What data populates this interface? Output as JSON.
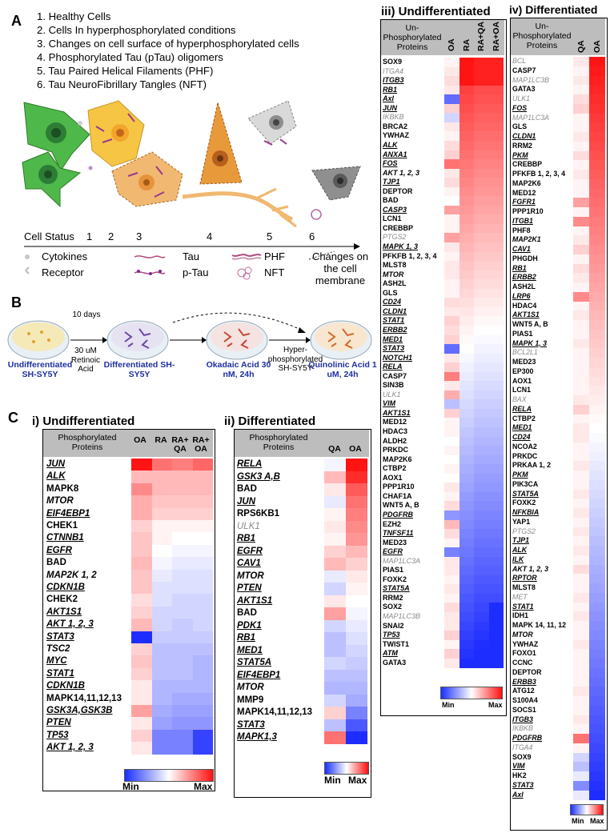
{
  "panelA": {
    "letter": "A",
    "list": [
      "1.   Healthy Cells",
      "2.   Cells In hyperphosphorylated conditions",
      "3.   Changes on cell surface of  hyperphosphorylated cells",
      "4.   Phosphorylated Tau (pTau) oligomers",
      "5.   Tau Paired Helical Filaments (PHF)",
      "6.   Tau NeuroFibrillary Tangles (NFT)"
    ],
    "status_label": "Cell Status",
    "status_numbers": [
      "1",
      "2",
      "3",
      "4",
      "5",
      "6"
    ],
    "legend": {
      "cytokines": "Cytokines",
      "receptor": "Receptor",
      "tau": "Tau",
      "ptau": "p-Tau",
      "phf": "PHF",
      "nft": "NFT",
      "membrane": "Changes on the cell membrane"
    }
  },
  "panelB": {
    "letter": "B",
    "undiff": "Undifferentiated SH-SY5Y",
    "diff": "Differentiated SH-SY5Y",
    "okadaic": "Okadaic Acid 30 nM, 24h",
    "quinolinic": "Quinolinic Acid 1 uM, 24h",
    "step1": "10 days",
    "step2": "30 uM Retinoic Acid",
    "hyper": "Hyper-phosphorylated SH-SY5Y"
  },
  "panelC": {
    "letter": "C",
    "i": {
      "title": "i)  Undifferentiated",
      "header": "Phosphorylated Proteins",
      "cols": [
        "OA",
        "RA",
        "RA+ QA",
        "RA+ OA"
      ],
      "genes": [
        {
          "n": "JUN",
          "s": "biu"
        },
        {
          "n": "ALK",
          "s": "biu"
        },
        {
          "n": "MAPK8",
          "s": "b"
        },
        {
          "n": "MTOR",
          "s": "bi"
        },
        {
          "n": "EIF4EBP1",
          "s": "biu"
        },
        {
          "n": "CHEK1",
          "s": "b"
        },
        {
          "n": "CTNNB1",
          "s": "biu"
        },
        {
          "n": "EGFR",
          "s": "biu"
        },
        {
          "n": "BAD",
          "s": "b"
        },
        {
          "n": "MAP2K 1, 2",
          "s": "bi"
        },
        {
          "n": "CDKN1B",
          "s": "biu"
        },
        {
          "n": "CHEK2",
          "s": "b"
        },
        {
          "n": "AKT1S1",
          "s": "biu"
        },
        {
          "n": "AKT 1, 2, 3",
          "s": "biu"
        },
        {
          "n": "STAT3",
          "s": "biu"
        },
        {
          "n": "TSC2",
          "s": "bi"
        },
        {
          "n": "MYC",
          "s": "biu"
        },
        {
          "n": "STAT1",
          "s": "biu"
        },
        {
          "n": "CDKN1B",
          "s": "biu"
        },
        {
          "n": "MAPK14,11,12,13",
          "s": "b"
        },
        {
          "n": "GSK3A,GSK3B",
          "s": "biu"
        },
        {
          "n": "PTEN",
          "s": "biu"
        },
        {
          "n": "TP53",
          "s": "biu"
        },
        {
          "n": "AKT 1, 2, 3",
          "s": "biu"
        }
      ],
      "values": [
        [
          1.0,
          0.6,
          0.55,
          0.65
        ],
        [
          0.3,
          0.3,
          0.3,
          0.3
        ],
        [
          0.5,
          0.3,
          0.3,
          0.3
        ],
        [
          0.35,
          0.25,
          0.25,
          0.25
        ],
        [
          0.35,
          0.2,
          0.2,
          0.2
        ],
        [
          0.2,
          0.05,
          0.05,
          0.05
        ],
        [
          0.25,
          0.05,
          0.0,
          0.0
        ],
        [
          0.25,
          0.0,
          -0.05,
          -0.05
        ],
        [
          0.3,
          -0.05,
          -0.1,
          -0.1
        ],
        [
          0.25,
          -0.1,
          -0.15,
          -0.15
        ],
        [
          0.25,
          -0.15,
          -0.15,
          -0.15
        ],
        [
          0.15,
          -0.15,
          -0.2,
          -0.2
        ],
        [
          0.2,
          -0.2,
          -0.2,
          -0.2
        ],
        [
          0.3,
          -0.2,
          -0.25,
          -0.2
        ],
        [
          -1.0,
          -0.25,
          -0.25,
          -0.25
        ],
        [
          0.2,
          -0.3,
          -0.3,
          -0.3
        ],
        [
          0.25,
          -0.3,
          -0.3,
          -0.35
        ],
        [
          0.2,
          -0.3,
          -0.3,
          -0.35
        ],
        [
          0.1,
          -0.35,
          -0.35,
          -0.35
        ],
        [
          0.1,
          -0.35,
          -0.4,
          -0.4
        ],
        [
          0.4,
          -0.4,
          -0.45,
          -0.45
        ],
        [
          0.1,
          -0.45,
          -0.5,
          -0.5
        ],
        [
          0.2,
          -0.6,
          -0.6,
          -0.9
        ],
        [
          0.1,
          -0.6,
          -0.6,
          -0.9
        ]
      ],
      "min": "Min",
      "max": "Max"
    },
    "ii": {
      "title": "ii)  Differentiated",
      "header": "Phosphorylated Proteins",
      "cols": [
        "QA",
        "OA"
      ],
      "genes": [
        {
          "n": "RELA",
          "s": "biu"
        },
        {
          "n": "GSK3 A,B",
          "s": "biu"
        },
        {
          "n": "BAD",
          "s": "b"
        },
        {
          "n": "JUN",
          "s": "biu"
        },
        {
          "n": "RPS6KB1",
          "s": "b"
        },
        {
          "n": "ULK1",
          "s": "gi"
        },
        {
          "n": "RB1",
          "s": "biu"
        },
        {
          "n": "EGFR",
          "s": "biu"
        },
        {
          "n": "CAV1",
          "s": "biu"
        },
        {
          "n": "MTOR",
          "s": "bi"
        },
        {
          "n": "PTEN",
          "s": "biu"
        },
        {
          "n": "AKT1S1",
          "s": "biu"
        },
        {
          "n": "BAD",
          "s": "b"
        },
        {
          "n": "PDK1",
          "s": "biu"
        },
        {
          "n": "RB1",
          "s": "biu"
        },
        {
          "n": "MED1",
          "s": "biu"
        },
        {
          "n": "STAT5A",
          "s": "biu"
        },
        {
          "n": "EIF4EBP1",
          "s": "biu"
        },
        {
          "n": "MTOR",
          "s": "bi"
        },
        {
          "n": "MMP9",
          "s": "b"
        },
        {
          "n": "MAPK14,11,12,13",
          "s": "b"
        },
        {
          "n": "STAT3",
          "s": "biu"
        },
        {
          "n": "MAPK1,3",
          "s": "biu"
        }
      ],
      "values": [
        [
          -0.05,
          1.0
        ],
        [
          0.3,
          0.9
        ],
        [
          0.1,
          0.7
        ],
        [
          -0.1,
          0.6
        ],
        [
          0.05,
          0.55
        ],
        [
          0.1,
          0.5
        ],
        [
          0.05,
          0.45
        ],
        [
          0.2,
          0.3
        ],
        [
          0.3,
          0.2
        ],
        [
          -0.1,
          0.1
        ],
        [
          -0.2,
          0.05
        ],
        [
          0.1,
          0.0
        ],
        [
          0.4,
          -0.05
        ],
        [
          -0.2,
          -0.1
        ],
        [
          -0.3,
          -0.15
        ],
        [
          -0.3,
          -0.2
        ],
        [
          -0.2,
          -0.25
        ],
        [
          -0.3,
          -0.3
        ],
        [
          -0.35,
          -0.35
        ],
        [
          -0.2,
          -0.4
        ],
        [
          0.2,
          -0.6
        ],
        [
          -0.3,
          -0.8
        ],
        [
          0.6,
          -1.0
        ]
      ],
      "min": "Min",
      "max": "Max"
    }
  },
  "panel3": {
    "title": "iii) Undifferentiated",
    "header": "Un-Phosphorylated Proteins",
    "cols": [
      "OA",
      "RA",
      "RA+QA",
      "RA+OA"
    ],
    "genes": [
      {
        "n": "SOX9",
        "s": "b"
      },
      {
        "n": "ITGA4",
        "s": "gi"
      },
      {
        "n": "ITGB3",
        "s": "biu"
      },
      {
        "n": "RB1",
        "s": "biu"
      },
      {
        "n": "Axl",
        "s": "biu"
      },
      {
        "n": "JUN",
        "s": "biu"
      },
      {
        "n": "IKBKB",
        "s": "gi"
      },
      {
        "n": "BRCA2",
        "s": "b"
      },
      {
        "n": "YWHAZ",
        "s": "b"
      },
      {
        "n": "ALK",
        "s": "biu"
      },
      {
        "n": "ANXA1",
        "s": "biu"
      },
      {
        "n": "FOS",
        "s": "biu"
      },
      {
        "n": "AKT 1, 2, 3",
        "s": "bi"
      },
      {
        "n": "TJP1",
        "s": "biu"
      },
      {
        "n": "DEPTOR",
        "s": "b"
      },
      {
        "n": "BAD",
        "s": "b"
      },
      {
        "n": "CASP3",
        "s": "biu"
      },
      {
        "n": "LCN1",
        "s": "b"
      },
      {
        "n": "CREBBP",
        "s": "b"
      },
      {
        "n": "PTGS2",
        "s": "gi"
      },
      {
        "n": "MAPK 1, 3",
        "s": "biu"
      },
      {
        "n": "PFKFB 1, 2, 3, 4",
        "s": "b"
      },
      {
        "n": "MLST8",
        "s": "b"
      },
      {
        "n": "MTOR",
        "s": "bi"
      },
      {
        "n": "ASH2L",
        "s": "b"
      },
      {
        "n": "GLS",
        "s": "b"
      },
      {
        "n": "CD24",
        "s": "biu"
      },
      {
        "n": "CLDN1",
        "s": "biu"
      },
      {
        "n": "STAT1",
        "s": "biu"
      },
      {
        "n": "ERBB2",
        "s": "biu"
      },
      {
        "n": "MED1",
        "s": "biu"
      },
      {
        "n": "STAT3",
        "s": "biu"
      },
      {
        "n": "NOTCH1",
        "s": "biu"
      },
      {
        "n": "RELA",
        "s": "biu"
      },
      {
        "n": "CASP7",
        "s": "b"
      },
      {
        "n": "SIN3B",
        "s": "b"
      },
      {
        "n": "ULK1",
        "s": "gi"
      },
      {
        "n": "VIM",
        "s": "biu"
      },
      {
        "n": "AKT1S1",
        "s": "biu"
      },
      {
        "n": "MED12",
        "s": "b"
      },
      {
        "n": "HDAC3",
        "s": "b"
      },
      {
        "n": "ALDH2",
        "s": "b"
      },
      {
        "n": "PRKDC",
        "s": "b"
      },
      {
        "n": "MAP2K6",
        "s": "b"
      },
      {
        "n": "CTBP2",
        "s": "b"
      },
      {
        "n": "AOX1",
        "s": "b"
      },
      {
        "n": "PPP1R10",
        "s": "b"
      },
      {
        "n": "CHAF1A",
        "s": "b"
      },
      {
        "n": "WNT5 A, B",
        "s": "b"
      },
      {
        "n": "PDGFRB",
        "s": "biu"
      },
      {
        "n": "EZH2",
        "s": "b"
      },
      {
        "n": "TNFSF11",
        "s": "biu"
      },
      {
        "n": "MED23",
        "s": "b"
      },
      {
        "n": "EGFR",
        "s": "biu"
      },
      {
        "n": "MAP1LC3A",
        "s": "gi"
      },
      {
        "n": "PIAS1",
        "s": "b"
      },
      {
        "n": "FOXK2",
        "s": "b"
      },
      {
        "n": "STAT5A",
        "s": "biu"
      },
      {
        "n": "RRM2",
        "s": "b"
      },
      {
        "n": "SOX2",
        "s": "b"
      },
      {
        "n": "MAP1LC3B",
        "s": "gi"
      },
      {
        "n": "SNAI2",
        "s": "b"
      },
      {
        "n": "TP53",
        "s": "biu"
      },
      {
        "n": "TWIST1",
        "s": "b"
      },
      {
        "n": "ATM",
        "s": "biu"
      },
      {
        "n": "GATA3",
        "s": "b"
      }
    ],
    "oa": [
      0.05,
      0.1,
      0.15,
      0.1,
      -0.7,
      0.2,
      -0.2,
      0.1,
      0.05,
      0.15,
      0.2,
      0.6,
      0.1,
      0.15,
      0.05,
      0.0,
      0.4,
      0.05,
      0.05,
      0.4,
      0.1,
      0.05,
      0.1,
      0.1,
      0.05,
      0.05,
      0.15,
      0.1,
      0.2,
      0.15,
      0.2,
      -0.7,
      0.1,
      0.2,
      0.55,
      0.1,
      0.35,
      -0.3,
      0.2,
      0.05,
      0.05,
      0.0,
      0.05,
      0.0,
      0.05,
      0.0,
      0.1,
      0.05,
      0.15,
      -0.5,
      0.3,
      0.15,
      0.05,
      -0.6,
      0.1,
      0.1,
      0.05,
      0.1,
      0.05,
      0.15,
      0.1,
      0.1,
      0.2,
      0.05,
      0.2,
      0.1
    ],
    "min": "Min",
    "max": "Max"
  },
  "panel4": {
    "title": "iv) Differentiated",
    "header": "Un-Phosphorylated Proteins",
    "cols": [
      "QA",
      "OA"
    ],
    "genes": [
      {
        "n": "BCL",
        "s": "gi"
      },
      {
        "n": "CASP7",
        "s": "b"
      },
      {
        "n": "MAP1LC3B",
        "s": "gi"
      },
      {
        "n": "GATA3",
        "s": "b"
      },
      {
        "n": "ULK1",
        "s": "gi"
      },
      {
        "n": "FOS",
        "s": "biu"
      },
      {
        "n": "MAP1LC3A",
        "s": "gi"
      },
      {
        "n": "GLS",
        "s": "b"
      },
      {
        "n": "CLDN1",
        "s": "biu"
      },
      {
        "n": "RRM2",
        "s": "b"
      },
      {
        "n": "PKM",
        "s": "biu"
      },
      {
        "n": "CREBBP",
        "s": "b"
      },
      {
        "n": "PFKFB 1, 2, 3, 4",
        "s": "b"
      },
      {
        "n": "MAP2K6",
        "s": "b"
      },
      {
        "n": "MED12",
        "s": "b"
      },
      {
        "n": "FGFR1",
        "s": "biu"
      },
      {
        "n": "PPP1R10",
        "s": "b"
      },
      {
        "n": "ITGB1",
        "s": "biu"
      },
      {
        "n": "PHF8",
        "s": "b"
      },
      {
        "n": "MAP2K1",
        "s": "bi"
      },
      {
        "n": "CAV1",
        "s": "biu"
      },
      {
        "n": "PHGDH",
        "s": "b"
      },
      {
        "n": "RB1",
        "s": "biu"
      },
      {
        "n": "ERBB2",
        "s": "biu"
      },
      {
        "n": "ASH2L",
        "s": "b"
      },
      {
        "n": "LRP6",
        "s": "biu"
      },
      {
        "n": "HDAC4",
        "s": "b"
      },
      {
        "n": "AKT1S1",
        "s": "biu"
      },
      {
        "n": "WNT5 A, B",
        "s": "b"
      },
      {
        "n": "PIAS1",
        "s": "b"
      },
      {
        "n": "MAPK 1, 3",
        "s": "biu"
      },
      {
        "n": "BCL2L1",
        "s": "gi"
      },
      {
        "n": "MED23",
        "s": "b"
      },
      {
        "n": "EP300",
        "s": "b"
      },
      {
        "n": "AOX1",
        "s": "b"
      },
      {
        "n": "LCN1",
        "s": "b"
      },
      {
        "n": "BAX",
        "s": "gi"
      },
      {
        "n": "RELA",
        "s": "biu"
      },
      {
        "n": "CTBP2",
        "s": "b"
      },
      {
        "n": "MED1",
        "s": "biu"
      },
      {
        "n": "CD24",
        "s": "biu"
      },
      {
        "n": "NCOA2",
        "s": "b"
      },
      {
        "n": "PRKDC",
        "s": "b"
      },
      {
        "n": "PRKAA 1, 2",
        "s": "b"
      },
      {
        "n": "PKM",
        "s": "biu"
      },
      {
        "n": "PIK3CA",
        "s": "b"
      },
      {
        "n": "STAT5A",
        "s": "biu"
      },
      {
        "n": "FOXK2",
        "s": "b"
      },
      {
        "n": "NFKBIA",
        "s": "biu"
      },
      {
        "n": "YAP1",
        "s": "b"
      },
      {
        "n": "PTGS2",
        "s": "gi"
      },
      {
        "n": "TJP1",
        "s": "biu"
      },
      {
        "n": "ALK",
        "s": "biu"
      },
      {
        "n": "ILK",
        "s": "biu"
      },
      {
        "n": "AKT 1, 2, 3",
        "s": "bi"
      },
      {
        "n": "RPTOR",
        "s": "biu"
      },
      {
        "n": "MLST8",
        "s": "b"
      },
      {
        "n": "MET",
        "s": "gi"
      },
      {
        "n": "STAT1",
        "s": "biu"
      },
      {
        "n": "IDH1",
        "s": "b"
      },
      {
        "n": "MAPK 14, 11, 12",
        "s": "b"
      },
      {
        "n": "MTOR",
        "s": "bi"
      },
      {
        "n": "YWHAZ",
        "s": "b"
      },
      {
        "n": "FOXO1",
        "s": "b"
      },
      {
        "n": "CCNC",
        "s": "b"
      },
      {
        "n": "DEPTOR",
        "s": "b"
      },
      {
        "n": "ERBB3",
        "s": "biu"
      },
      {
        "n": "ATG12",
        "s": "b"
      },
      {
        "n": "S100A4",
        "s": "b"
      },
      {
        "n": "SOCS1",
        "s": "b"
      },
      {
        "n": "ITGB3",
        "s": "biu"
      },
      {
        "n": "IKBKB",
        "s": "gi"
      },
      {
        "n": "PDGFRB",
        "s": "biu"
      },
      {
        "n": "ITGA4",
        "s": "gi"
      },
      {
        "n": "SOX9",
        "s": "b"
      },
      {
        "n": "VIM",
        "s": "biu"
      },
      {
        "n": "HK2",
        "s": "b"
      },
      {
        "n": "STAT3",
        "s": "biu"
      },
      {
        "n": "Axl",
        "s": "biu"
      }
    ],
    "qa": [
      0.1,
      0.05,
      0.1,
      0.05,
      0.15,
      0.2,
      0.05,
      0.05,
      0.1,
      0.05,
      0.15,
      0.05,
      0.1,
      0.05,
      0.05,
      0.4,
      0.05,
      0.5,
      0.05,
      0.1,
      0.2,
      0.05,
      0.15,
      0.1,
      0.05,
      0.5,
      0.05,
      0.1,
      0.05,
      0.05,
      0.1,
      0.05,
      0.05,
      0.05,
      0.05,
      0.05,
      0.1,
      0.2,
      0.05,
      0.1,
      0.1,
      0.05,
      0.05,
      0.1,
      0.05,
      0.05,
      0.1,
      0.05,
      0.1,
      0.05,
      0.1,
      0.05,
      0.1,
      0.05,
      0.15,
      0.05,
      0.05,
      0.1,
      0.05,
      0.1,
      0.05,
      0.05,
      0.1,
      0.05,
      0.05,
      0.05,
      0.05,
      0.1,
      0.05,
      0.05,
      0.1,
      0.05,
      0.6,
      0.05,
      -0.2,
      -0.3,
      -0.1,
      -0.55,
      -0.1
    ],
    "min": "Min",
    "max": "Max"
  }
}
